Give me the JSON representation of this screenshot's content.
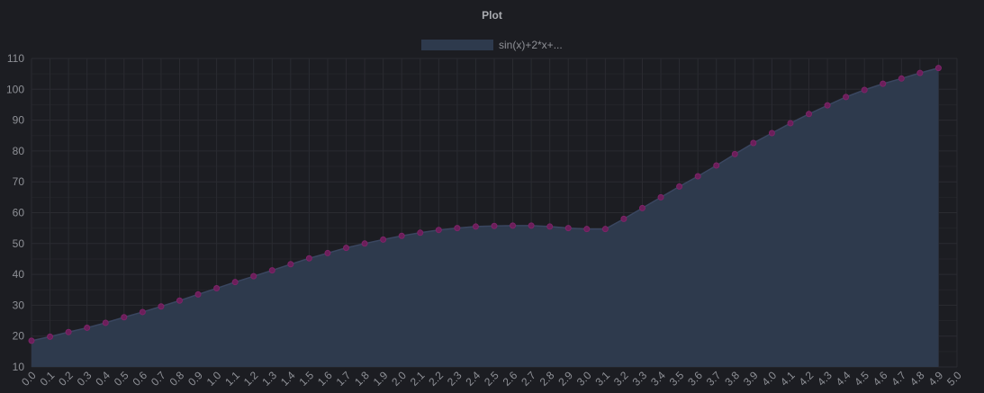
{
  "chart_data": {
    "type": "area",
    "title": "Plot",
    "xlabel": "",
    "ylabel": "",
    "legend": "top-center",
    "grid": true,
    "xlim": [
      0.0,
      5.0
    ],
    "ylim": [
      10,
      110
    ],
    "y_ticks": [
      "10",
      "20",
      "30",
      "40",
      "50",
      "60",
      "70",
      "80",
      "90",
      "100",
      "110"
    ],
    "x_ticks": [
      "0.0",
      "0.1",
      "0.2",
      "0.3",
      "0.4",
      "0.5",
      "0.6",
      "0.7",
      "0.8",
      "0.9",
      "1.0",
      "1.1",
      "1.2",
      "1.3",
      "1.4",
      "1.5",
      "1.6",
      "1.7",
      "1.8",
      "1.9",
      "2.0",
      "2.1",
      "2.2",
      "2.3",
      "2.4",
      "2.5",
      "2.6",
      "2.7",
      "2.8",
      "2.9",
      "3.0",
      "3.1",
      "3.2",
      "3.3",
      "3.4",
      "3.5",
      "3.6",
      "3.7",
      "3.8",
      "3.9",
      "4.0",
      "4.1",
      "4.2",
      "4.3",
      "4.4",
      "4.5",
      "4.6",
      "4.7",
      "4.8",
      "4.9",
      "5.0"
    ],
    "series": [
      {
        "name": "sin(x)+2*x+...",
        "fill_color": "#2e3a4d",
        "line_color": "#2e3a4d",
        "point_color": "#6b1f5a",
        "x": [
          0.0,
          0.1,
          0.2,
          0.3,
          0.4,
          0.5,
          0.6,
          0.7,
          0.8,
          0.9,
          1.0,
          1.1,
          1.2,
          1.3,
          1.4,
          1.5,
          1.6,
          1.7,
          1.8,
          1.9,
          2.0,
          2.1,
          2.2,
          2.3,
          2.4,
          2.5,
          2.6,
          2.7,
          2.8,
          2.9,
          3.0,
          3.1,
          3.2,
          3.3,
          3.4,
          3.5,
          3.6,
          3.7,
          3.8,
          3.9,
          4.0,
          4.1,
          4.2,
          4.3,
          4.4,
          4.5,
          4.6,
          4.7,
          4.8,
          4.9
        ],
        "values": [
          18.5,
          19.8,
          21.3,
          22.7,
          24.3,
          26.1,
          27.8,
          29.6,
          31.5,
          33.5,
          35.5,
          37.5,
          39.4,
          41.3,
          43.3,
          45.2,
          46.9,
          48.6,
          50.0,
          51.3,
          52.5,
          53.5,
          54.4,
          55.0,
          55.5,
          55.7,
          55.8,
          55.8,
          55.5,
          55.0,
          54.7,
          54.7,
          58.0,
          61.5,
          65.0,
          68.5,
          71.8,
          75.3,
          79.0,
          82.6,
          85.8,
          89.0,
          92.0,
          94.8,
          97.5,
          99.8,
          101.8,
          103.5,
          105.3,
          106.9
        ]
      }
    ]
  },
  "colors": {
    "background": "#1c1d22",
    "grid": "#2a2b31",
    "text": "#8e9096"
  }
}
